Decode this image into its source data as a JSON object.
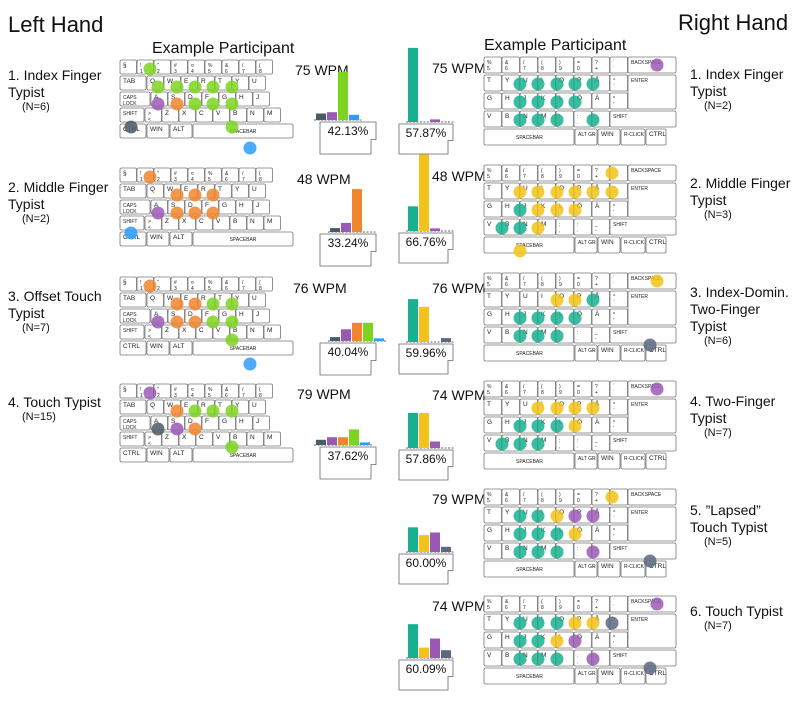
{
  "left_title": "Left Hand",
  "right_title": "Right Hand",
  "example_left": "Example Participant",
  "example_right": "Example Participant",
  "colors": {
    "index": "#7ed321",
    "middle": "#f0862e",
    "ring": "#9b59b6",
    "pinky": "#4a5a6a",
    "thumb": "#2d9cff",
    "r_index": "#19b08f",
    "r_middle": "#f2c318",
    "r_ring": "#9b59b6",
    "r_pinky": "#5a6a80",
    "key_border": "#777777",
    "key_fill": "#ffffff"
  },
  "left_groups": [
    {
      "name": "1. Index Finger\nTypist",
      "n": "(N=6)",
      "wpm": "75 WPM",
      "pct": "42.13%",
      "bars": [
        0.05,
        0.06,
        0.37,
        0.04
      ],
      "bar_colors": [
        "pinky",
        "ring",
        "index",
        "thumb"
      ]
    },
    {
      "name": "2. Middle Finger\nTypist",
      "n": "(N=2)",
      "wpm": "48 WPM",
      "pct": "33.24%",
      "bars": [
        0.03,
        0.07,
        0.33,
        0.0
      ],
      "bar_colors": [
        "pinky",
        "ring",
        "middle",
        "index"
      ]
    },
    {
      "name": "3. Offset Touch\nTypist",
      "n": "(N=7)",
      "wpm": "76 WPM",
      "pct": "40.04%",
      "bars": [
        0.03,
        0.09,
        0.14,
        0.14,
        0.02
      ],
      "bar_colors": [
        "pinky",
        "ring",
        "middle",
        "index",
        "thumb"
      ]
    },
    {
      "name": "4. Touch Typist",
      "n": "(N=15)",
      "wpm": "79 WPM",
      "pct": "37.62%",
      "bars": [
        0.04,
        0.06,
        0.06,
        0.12,
        0.02
      ],
      "bar_colors": [
        "pinky",
        "ring",
        "middle",
        "index",
        "thumb"
      ]
    }
  ],
  "right_groups": [
    {
      "name": "1. Index Finger\nTypist",
      "n": "(N=2)",
      "wpm": "75 WPM",
      "pct": "57.87%",
      "bars": [
        0.57,
        0.0,
        0.02,
        0.0
      ],
      "bar_colors": [
        "r_index",
        "r_middle",
        "r_ring",
        "r_pinky"
      ]
    },
    {
      "name": "2. Middle Finger\nTypist",
      "n": "(N=3)",
      "wpm": "48 WPM",
      "pct": "66.76%",
      "bars": [
        0.19,
        0.59,
        0.02,
        0.0
      ],
      "bar_colors": [
        "r_index",
        "r_middle",
        "r_ring",
        "r_pinky"
      ]
    },
    {
      "name": "3. Index-Domin.\nTwo-Finger\nTypist",
      "n": "(N=6)",
      "wpm": "76 WPM",
      "pct": "59.96%",
      "bars": [
        0.33,
        0.27,
        0.0,
        0.03
      ],
      "bar_colors": [
        "r_index",
        "r_middle",
        "r_ring",
        "r_pinky"
      ]
    },
    {
      "name": "4. Two-Finger\nTypist",
      "n": "(N=7)",
      "wpm": "74 WPM",
      "pct": "57.86%",
      "bars": [
        0.27,
        0.27,
        0.05,
        0.0
      ],
      "bar_colors": [
        "r_index",
        "r_middle",
        "r_ring",
        "r_pinky"
      ]
    },
    {
      "name": "5. ”Lapsed”\nTouch Typist",
      "n": "(N=5)",
      "wpm": "79 WPM",
      "pct": "60.00%",
      "bars": [
        0.19,
        0.13,
        0.15,
        0.04
      ],
      "bar_colors": [
        "r_index",
        "r_middle",
        "r_ring",
        "r_pinky"
      ]
    },
    {
      "name": "6. Touch Typist",
      "n": "(N=7)",
      "wpm": "74 WPM",
      "pct": "60.09%",
      "bars": [
        0.26,
        0.08,
        0.15,
        0.06
      ],
      "bar_colors": [
        "r_index",
        "r_middle",
        "r_ring",
        "r_pinky"
      ]
    }
  ],
  "keyboard_left": {
    "row0": [
      "§",
      "!\n1",
      "\"\n2",
      "#\n3",
      "¤\n4",
      "%\n5",
      "&\n6",
      "/\n7",
      "(\n8"
    ],
    "row1": [
      "TAB",
      "Q",
      "W",
      "E",
      "R",
      "T",
      "Y",
      "U"
    ],
    "row2": [
      "CAPS\nLOCK",
      "A",
      "S",
      "D",
      "F",
      "G",
      "H",
      "J"
    ],
    "row3": [
      "SHIFT",
      ">\n<",
      "Z",
      "X",
      "C",
      "V",
      "B",
      "N",
      "M"
    ],
    "row4": [
      "CTRL",
      "WIN",
      "ALT",
      "SPACEBAR"
    ]
  },
  "keyboard_right": {
    "row0": [
      "%\n5",
      "&\n6",
      "/\n7",
      "(\n8",
      ")\n9",
      "=\n0",
      "?\n+",
      "`\n´",
      "BACKSPACE"
    ],
    "row1": [
      "T",
      "Y",
      "U",
      "I",
      "O",
      "P",
      "Å",
      "^\n¨",
      "ENTER"
    ],
    "row2": [
      "G",
      "H",
      "J",
      "K",
      "L",
      "Ö",
      "Ä",
      "*\n'"
    ],
    "row3": [
      "V",
      "B",
      "N",
      "M",
      ";\n,",
      ":\n.",
      "_\n-",
      "SHIFT"
    ],
    "row4": [
      "SPACEBAR",
      "ALT GR",
      "WIN",
      "R-CLICK",
      "CTRL"
    ]
  }
}
